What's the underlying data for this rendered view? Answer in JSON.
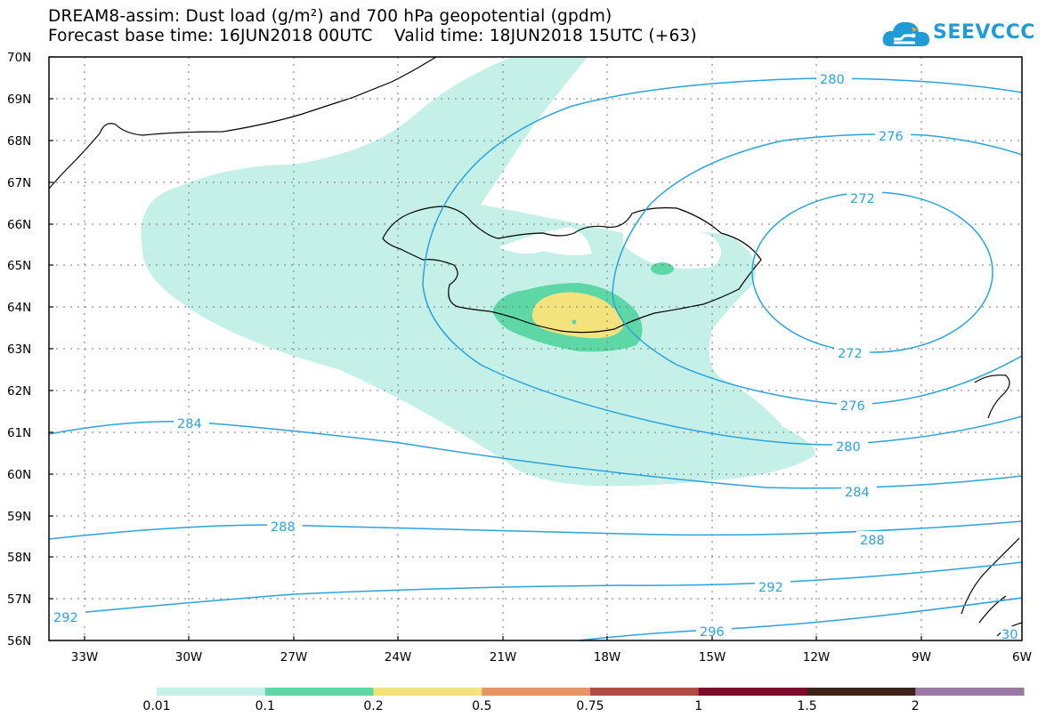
{
  "title": {
    "line1": "DREAM8-assim: Dust load (g/m²) and 700 hPa geopotential (gpdm)",
    "line2": "Forecast base time: 16JUN2018 00UTC    Valid time: 18JUN2018 15UTC (+63)"
  },
  "logo": {
    "text": "SEEVCCC",
    "color": "#1f9bd7"
  },
  "map": {
    "lon_range": [
      -34.5,
      -6
    ],
    "lat_range": [
      56,
      70
    ],
    "lat_labels": [
      "70N",
      "69N",
      "68N",
      "67N",
      "66N",
      "65N",
      "64N",
      "63N",
      "62N",
      "61N",
      "60N",
      "59N",
      "58N",
      "57N",
      "56N"
    ],
    "lon_labels": [
      "33W",
      "30W",
      "27W",
      "24W",
      "21W",
      "18W",
      "15W",
      "12W",
      "9W",
      "6W"
    ],
    "grid": "dotted",
    "contour_color": "#29a3e0",
    "contour_labels": [
      "280",
      "276",
      "272",
      "272",
      "276",
      "280",
      "284",
      "284",
      "288",
      "288",
      "292",
      "292",
      "296",
      "30"
    ]
  },
  "colorbar": {
    "labels": [
      "0.01",
      "0.1",
      "0.2",
      "0.5",
      "0.75",
      "1",
      "1.5",
      "2"
    ],
    "colors": [
      "#c5f0e8",
      "#5ed7a6",
      "#f4e37d",
      "#e6936b",
      "#b04a44",
      "#7d0b2b",
      "#3c2418",
      "#9b77a6"
    ]
  }
}
